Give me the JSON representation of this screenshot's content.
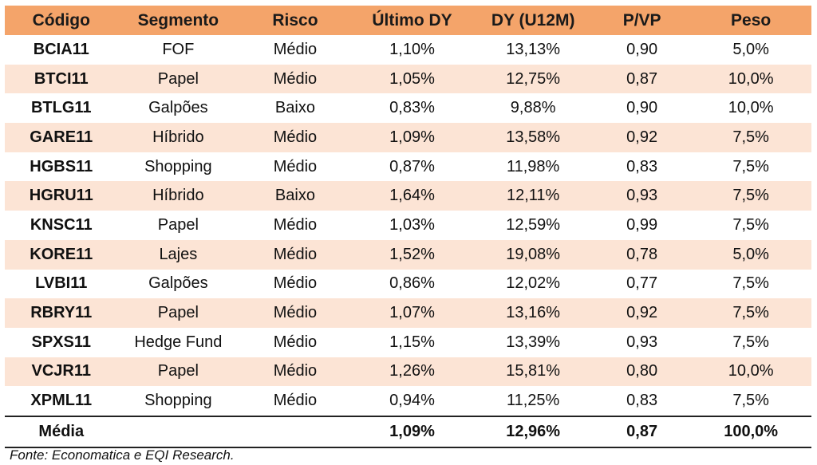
{
  "table": {
    "headers": [
      "Código",
      "Segmento",
      "Risco",
      "Último DY",
      "DY (U12M)",
      "P/VP",
      "Peso"
    ],
    "header_bg": "#F4A46A",
    "stripe_bg": "#FCE4D5",
    "rows": [
      [
        "BCIA11",
        "FOF",
        "Médio",
        "1,10%",
        "13,13%",
        "0,90",
        "5,0%"
      ],
      [
        "BTCI11",
        "Papel",
        "Médio",
        "1,05%",
        "12,75%",
        "0,87",
        "10,0%"
      ],
      [
        "BTLG11",
        "Galpões",
        "Baixo",
        "0,83%",
        "9,88%",
        "0,90",
        "10,0%"
      ],
      [
        "GARE11",
        "Híbrido",
        "Médio",
        "1,09%",
        "13,58%",
        "0,92",
        "7,5%"
      ],
      [
        "HGBS11",
        "Shopping",
        "Médio",
        "0,87%",
        "11,98%",
        "0,83",
        "7,5%"
      ],
      [
        "HGRU11",
        "Híbrido",
        "Baixo",
        "1,64%",
        "12,11%",
        "0,93",
        "7,5%"
      ],
      [
        "KNSC11",
        "Papel",
        "Médio",
        "1,03%",
        "12,59%",
        "0,99",
        "7,5%"
      ],
      [
        "KORE11",
        "Lajes",
        "Médio",
        "1,52%",
        "19,08%",
        "0,78",
        "5,0%"
      ],
      [
        "LVBI11",
        "Galpões",
        "Médio",
        "0,86%",
        "12,02%",
        "0,77",
        "7,5%"
      ],
      [
        "RBRY11",
        "Papel",
        "Médio",
        "1,07%",
        "13,16%",
        "0,92",
        "7,5%"
      ],
      [
        "SPXS11",
        "Hedge Fund",
        "Médio",
        "1,15%",
        "13,39%",
        "0,93",
        "7,5%"
      ],
      [
        "VCJR11",
        "Papel",
        "Médio",
        "1,26%",
        "15,81%",
        "0,80",
        "10,0%"
      ],
      [
        "XPML11",
        "Shopping",
        "Médio",
        "0,94%",
        "11,25%",
        "0,83",
        "7,5%"
      ]
    ],
    "footer": [
      "Média",
      "",
      "",
      "1,09%",
      "12,96%",
      "0,87",
      "100,0%"
    ]
  },
  "source": "Fonte:  Economatica e EQI Research."
}
